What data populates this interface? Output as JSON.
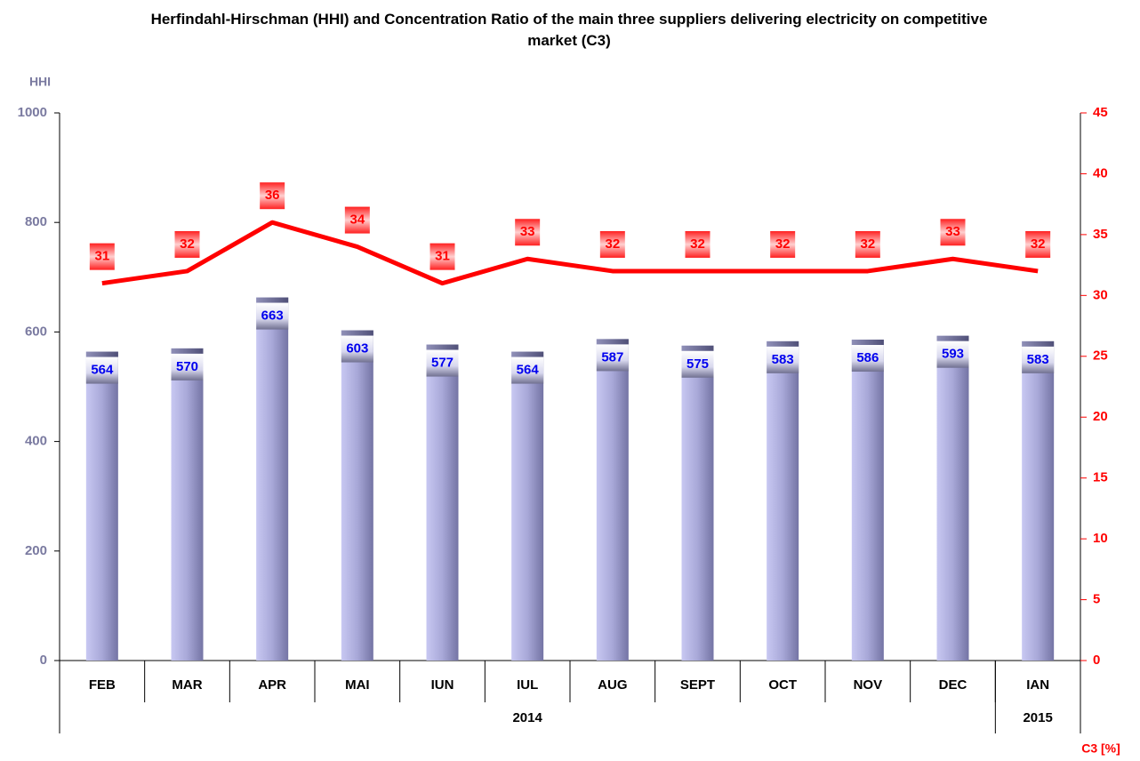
{
  "chart_data": {
    "type": "bar_line",
    "title": "Herfindahl-Hirschman (HHI) and Concentration Ratio of the main three suppliers delivering electricity on competitive market (C3)",
    "y_label": "HHI",
    "y2_label": "C3 [%]",
    "categories": [
      "FEB",
      "MAR",
      "APR",
      "MAI",
      "IUN",
      "IUL",
      "AUG",
      "SEPT",
      "OCT",
      "NOV",
      "DEC",
      "IAN"
    ],
    "group_labels": [
      "2014",
      "2014",
      "2014",
      "2014",
      "2014",
      "2014",
      "2014",
      "2014",
      "2014",
      "2014",
      "2014",
      "2015"
    ],
    "series": [
      {
        "name": "HHI",
        "type": "bar",
        "axis": "y",
        "color": "#a8a8d8",
        "values": [
          564,
          570,
          663,
          603,
          577,
          564,
          587,
          575,
          583,
          586,
          593,
          583
        ]
      },
      {
        "name": "C3",
        "type": "line",
        "axis": "y2",
        "color": "#ff0000",
        "values": [
          31,
          32,
          36,
          34,
          31,
          33,
          32,
          32,
          32,
          32,
          33,
          32
        ]
      }
    ],
    "ylim": [
      0,
      1000
    ],
    "yticks": [
      0,
      200,
      400,
      600,
      800,
      1000
    ],
    "y2lim": [
      0,
      45
    ],
    "y2ticks": [
      0,
      5,
      10,
      15,
      20,
      25,
      30,
      35,
      40,
      45
    ]
  }
}
